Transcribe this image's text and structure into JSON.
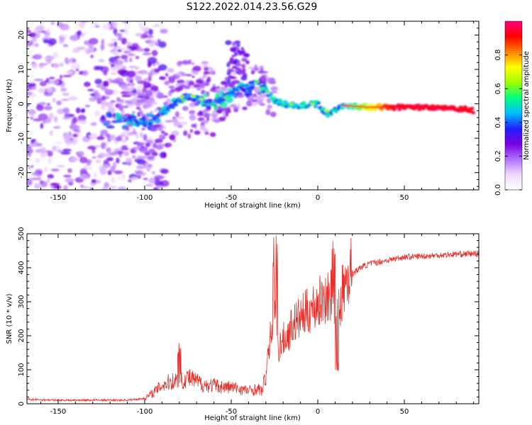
{
  "title": "S122.2022.014.23.56.G29",
  "chart_data": [
    {
      "type": "heatmap",
      "xlabel": "Height of straight line (km)",
      "ylabel": "Frequency (Hz)",
      "xlim": [
        -168,
        93
      ],
      "ylim": [
        -25,
        24
      ],
      "xticks": [
        -150,
        -100,
        -50,
        0,
        50
      ],
      "yticks": [
        20,
        10,
        0,
        -10,
        -20
      ],
      "colorbar": {
        "label": "Normalized spectral amplitude",
        "range": [
          0,
          1
        ],
        "ticks": [
          "0.0",
          "0.2",
          "0.4",
          "0.6",
          "0.8"
        ],
        "colormap": [
          "#ffffff",
          "#f0d8ff",
          "#b070ff",
          "#7a00e0",
          "#2020ff",
          "#00c0ff",
          "#00ff80",
          "#a0ff00",
          "#ffff00",
          "#ff8000",
          "#ff0000",
          "#ff0080"
        ]
      },
      "ridge": {
        "x": [
          -110,
          -100,
          -90,
          -80,
          -70,
          -60,
          -50,
          -45,
          -40,
          -35,
          -30,
          -25,
          -20,
          -10,
          0,
          5,
          10,
          15,
          30,
          50,
          70,
          85,
          90
        ],
        "y": [
          -5,
          -6,
          -3,
          1,
          2,
          0,
          3,
          5,
          4,
          7,
          4,
          1,
          0,
          -0.5,
          0,
          -3,
          -2,
          -0.5,
          -1,
          -1,
          -1,
          -1.5,
          -2
        ]
      }
    },
    {
      "type": "line",
      "xlabel": "Height of straight line (km)",
      "ylabel": "SNR (10 * v/v)",
      "xlim": [
        -168,
        93
      ],
      "ylim": [
        0,
        500
      ],
      "xticks": [
        -150,
        -100,
        -50,
        0,
        50
      ],
      "yticks": [
        500,
        400,
        300,
        200,
        100,
        0
      ],
      "series": [
        {
          "color": "#e8302a",
          "x": [
            -168,
            -150,
            -130,
            -110,
            -100,
            -95,
            -90,
            -85,
            -80,
            -75,
            -70,
            -65,
            -60,
            -55,
            -50,
            -45,
            -40,
            -35,
            -32,
            -30,
            -27,
            -25,
            -23,
            -20,
            -17,
            -15,
            -10,
            -5,
            0,
            5,
            8,
            10,
            12,
            15,
            20,
            25,
            30,
            40,
            50,
            60,
            70,
            80,
            93
          ],
          "y": [
            12,
            10,
            10,
            10,
            15,
            30,
            50,
            60,
            65,
            70,
            60,
            50,
            50,
            45,
            45,
            40,
            35,
            40,
            35,
            80,
            200,
            260,
            150,
            180,
            190,
            220,
            240,
            260,
            280,
            300,
            300,
            240,
            250,
            330,
            380,
            400,
            410,
            420,
            430,
            432,
            435,
            438,
            440
          ]
        }
      ]
    }
  ]
}
